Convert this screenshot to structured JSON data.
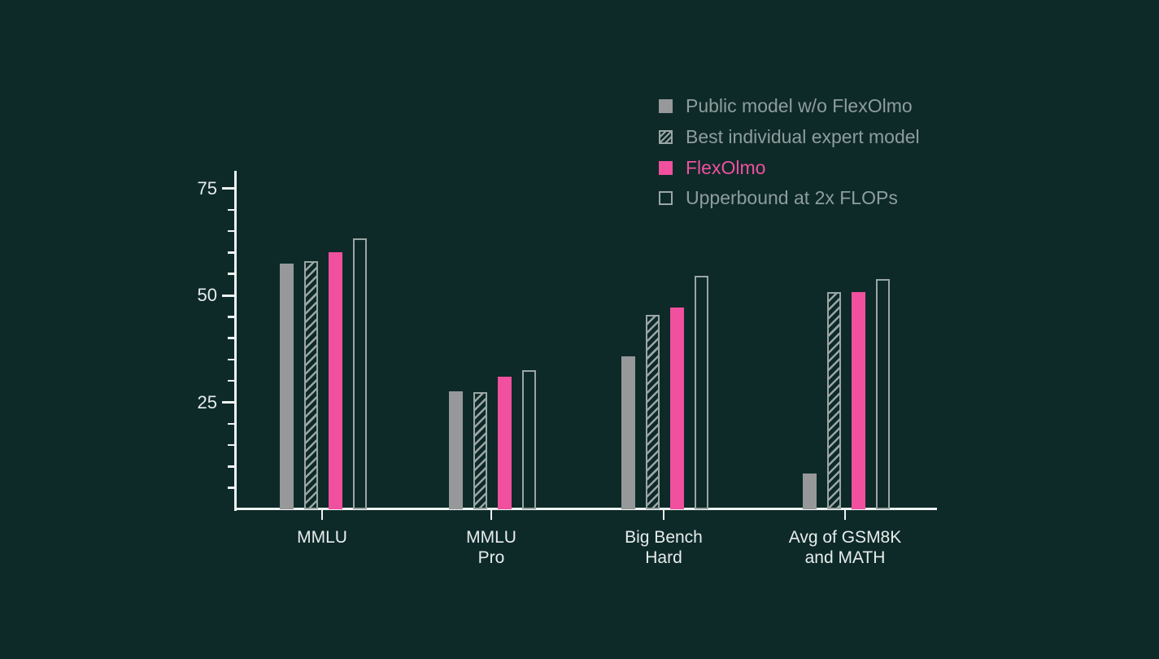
{
  "chart_data": {
    "type": "bar",
    "title": "",
    "xlabel": "",
    "ylabel": "",
    "categories": [
      "MMLU",
      "MMLU Pro",
      "Big Bench Hard",
      "Avg of GSM8K and MATH"
    ],
    "category_label_lines": [
      [
        "MMLU"
      ],
      [
        "MMLU",
        "Pro"
      ],
      [
        "Big Bench",
        "Hard"
      ],
      [
        "Avg of GSM8K",
        "and MATH"
      ]
    ],
    "series": [
      {
        "name": "Public model w/o FlexOlmo",
        "style": "solid-gray",
        "color": "#96989a",
        "values": [
          57.4,
          27.5,
          35.7,
          8.4
        ]
      },
      {
        "name": "Best individual expert model",
        "style": "hatched",
        "color": "#9ba6a4",
        "values": [
          58.0,
          27.3,
          45.5,
          50.7
        ]
      },
      {
        "name": "FlexOlmo",
        "style": "solid-pink",
        "color": "#f0509e",
        "values": [
          60.0,
          31.0,
          47.1,
          50.7
        ]
      },
      {
        "name": "Upperbound at 2x FLOPs",
        "style": "outline",
        "color": "#9ba6a4",
        "values": [
          63.4,
          32.5,
          54.6,
          53.8
        ]
      }
    ],
    "y_axis": {
      "major_ticks": [
        25,
        50,
        75
      ],
      "minor_tick_step": 5,
      "minor_tick_max": 70,
      "ylim": [
        0,
        79
      ]
    },
    "legend_position": "top-right",
    "grid": false,
    "hatch_direction": "/"
  },
  "colors": {
    "background": "#0d2a29",
    "axis": "#edf2f0",
    "bar_gray": "#96989a",
    "bar_pink": "#f0509e",
    "bar_outline_stroke": "#9ba6a4",
    "legend_text": "#8e9e9b",
    "tick_label": "#e7edeb"
  }
}
